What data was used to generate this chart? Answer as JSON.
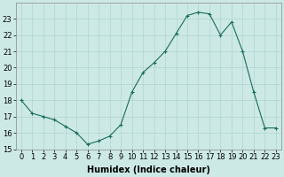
{
  "x": [
    0,
    1,
    2,
    3,
    4,
    5,
    6,
    7,
    8,
    9,
    10,
    11,
    12,
    13,
    14,
    15,
    16,
    17,
    18,
    19,
    20,
    21,
    22,
    23
  ],
  "y": [
    18.0,
    17.2,
    17.0,
    16.8,
    16.4,
    16.0,
    15.3,
    15.5,
    15.8,
    16.5,
    18.5,
    19.7,
    20.3,
    21.0,
    22.1,
    23.2,
    23.4,
    23.3,
    22.0,
    22.8,
    21.0,
    18.5,
    16.3,
    16.3
  ],
  "line_color": "#1a6b5a",
  "marker": "+",
  "marker_size": 3,
  "marker_linewidth": 0.8,
  "bg_color": "#cce9e6",
  "grid_color": "#b0d4d0",
  "xlabel": "Humidex (Indice chaleur)",
  "ylim": [
    15,
    24
  ],
  "xlim": [
    -0.5,
    23.5
  ],
  "yticks": [
    15,
    16,
    17,
    18,
    19,
    20,
    21,
    22,
    23
  ],
  "xticks": [
    0,
    1,
    2,
    3,
    4,
    5,
    6,
    7,
    8,
    9,
    10,
    11,
    12,
    13,
    14,
    15,
    16,
    17,
    18,
    19,
    20,
    21,
    22,
    23
  ],
  "xtick_labels": [
    "0",
    "1",
    "2",
    "3",
    "4",
    "5",
    "6",
    "7",
    "8",
    "9",
    "10",
    "11",
    "12",
    "13",
    "14",
    "15",
    "16",
    "17",
    "18",
    "19",
    "20",
    "21",
    "22",
    "23"
  ],
  "xlabel_fontsize": 7,
  "tick_fontsize": 6
}
